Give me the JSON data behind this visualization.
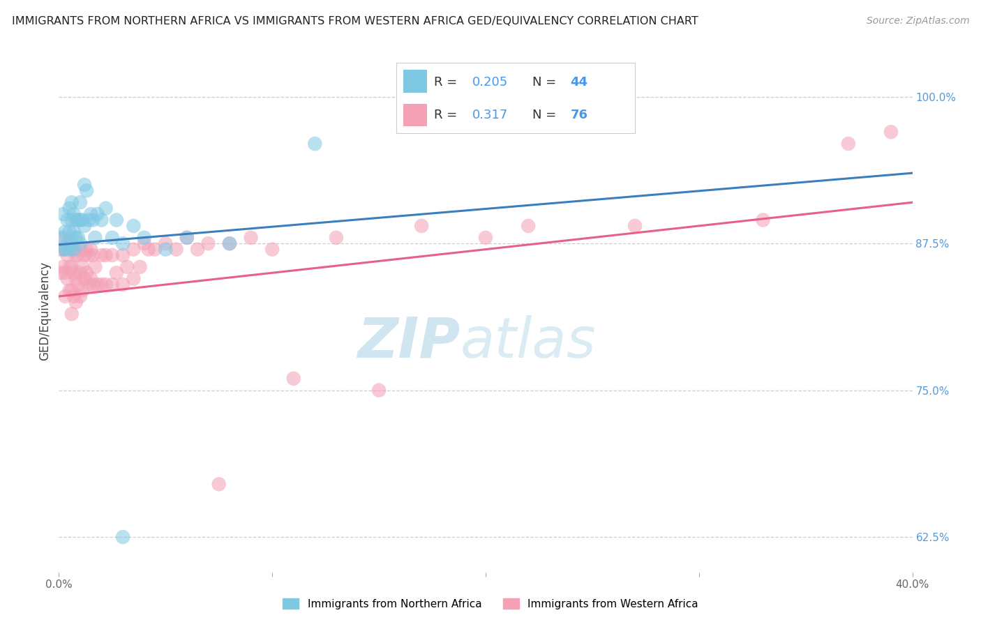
{
  "title": "IMMIGRANTS FROM NORTHERN AFRICA VS IMMIGRANTS FROM WESTERN AFRICA GED/EQUIVALENCY CORRELATION CHART",
  "source": "Source: ZipAtlas.com",
  "ylabel": "GED/Equivalency",
  "x_min": 0.0,
  "x_max": 0.4,
  "y_min": 0.595,
  "y_max": 1.04,
  "x_ticks": [
    0.0,
    0.1,
    0.2,
    0.3,
    0.4
  ],
  "x_tick_labels": [
    "0.0%",
    "",
    "",
    "",
    "40.0%"
  ],
  "y_ticks": [
    0.625,
    0.75,
    0.875,
    1.0
  ],
  "y_tick_labels": [
    "62.5%",
    "75.0%",
    "87.5%",
    "100.0%"
  ],
  "blue_R": 0.205,
  "blue_N": 44,
  "pink_R": 0.317,
  "pink_N": 76,
  "series1_label": "Immigrants from Northern Africa",
  "series2_label": "Immigrants from Western Africa",
  "blue_color": "#7ec8e3",
  "pink_color": "#f4a0b5",
  "blue_line_color": "#3a7ebf",
  "pink_line_color": "#e8608a",
  "background_color": "#ffffff",
  "grid_color": "#c8c8c8",
  "watermark_color": "#cfe5f0",
  "blue_scatter_x": [
    0.001,
    0.002,
    0.002,
    0.003,
    0.003,
    0.004,
    0.004,
    0.005,
    0.005,
    0.005,
    0.006,
    0.006,
    0.006,
    0.007,
    0.007,
    0.007,
    0.008,
    0.008,
    0.009,
    0.009,
    0.01,
    0.01,
    0.01,
    0.011,
    0.012,
    0.012,
    0.013,
    0.014,
    0.015,
    0.016,
    0.017,
    0.018,
    0.02,
    0.022,
    0.025,
    0.027,
    0.03,
    0.035,
    0.04,
    0.05,
    0.06,
    0.08,
    0.12,
    0.03
  ],
  "blue_scatter_y": [
    0.88,
    0.9,
    0.87,
    0.885,
    0.87,
    0.895,
    0.875,
    0.905,
    0.885,
    0.87,
    0.91,
    0.895,
    0.875,
    0.9,
    0.885,
    0.87,
    0.895,
    0.88,
    0.895,
    0.88,
    0.91,
    0.895,
    0.875,
    0.895,
    0.925,
    0.89,
    0.92,
    0.895,
    0.9,
    0.895,
    0.88,
    0.9,
    0.895,
    0.905,
    0.88,
    0.895,
    0.875,
    0.89,
    0.88,
    0.87,
    0.88,
    0.875,
    0.96,
    0.625
  ],
  "pink_scatter_x": [
    0.001,
    0.001,
    0.002,
    0.002,
    0.003,
    0.003,
    0.003,
    0.004,
    0.004,
    0.005,
    0.005,
    0.005,
    0.006,
    0.006,
    0.006,
    0.006,
    0.007,
    0.007,
    0.007,
    0.008,
    0.008,
    0.008,
    0.009,
    0.009,
    0.01,
    0.01,
    0.01,
    0.011,
    0.011,
    0.012,
    0.012,
    0.013,
    0.013,
    0.014,
    0.014,
    0.015,
    0.015,
    0.016,
    0.016,
    0.017,
    0.018,
    0.02,
    0.02,
    0.022,
    0.022,
    0.025,
    0.025,
    0.027,
    0.03,
    0.03,
    0.032,
    0.035,
    0.035,
    0.038,
    0.04,
    0.042,
    0.045,
    0.05,
    0.055,
    0.06,
    0.065,
    0.07,
    0.075,
    0.08,
    0.09,
    0.1,
    0.11,
    0.13,
    0.15,
    0.17,
    0.2,
    0.22,
    0.27,
    0.33,
    0.37,
    0.39
  ],
  "pink_scatter_y": [
    0.87,
    0.85,
    0.88,
    0.855,
    0.87,
    0.85,
    0.83,
    0.865,
    0.845,
    0.875,
    0.855,
    0.835,
    0.87,
    0.855,
    0.835,
    0.815,
    0.87,
    0.85,
    0.83,
    0.865,
    0.845,
    0.825,
    0.865,
    0.84,
    0.87,
    0.85,
    0.83,
    0.855,
    0.835,
    0.865,
    0.845,
    0.87,
    0.85,
    0.865,
    0.84,
    0.87,
    0.845,
    0.865,
    0.84,
    0.855,
    0.84,
    0.865,
    0.84,
    0.865,
    0.84,
    0.865,
    0.84,
    0.85,
    0.865,
    0.84,
    0.855,
    0.87,
    0.845,
    0.855,
    0.875,
    0.87,
    0.87,
    0.875,
    0.87,
    0.88,
    0.87,
    0.875,
    0.67,
    0.875,
    0.88,
    0.87,
    0.76,
    0.88,
    0.75,
    0.89,
    0.88,
    0.89,
    0.89,
    0.895,
    0.96,
    0.97
  ],
  "blue_trend_x0": 0.0,
  "blue_trend_y0": 0.874,
  "blue_trend_x1": 0.4,
  "blue_trend_y1": 0.935,
  "pink_trend_x0": 0.0,
  "pink_trend_y0": 0.83,
  "pink_trend_x1": 0.4,
  "pink_trend_y1": 0.91
}
